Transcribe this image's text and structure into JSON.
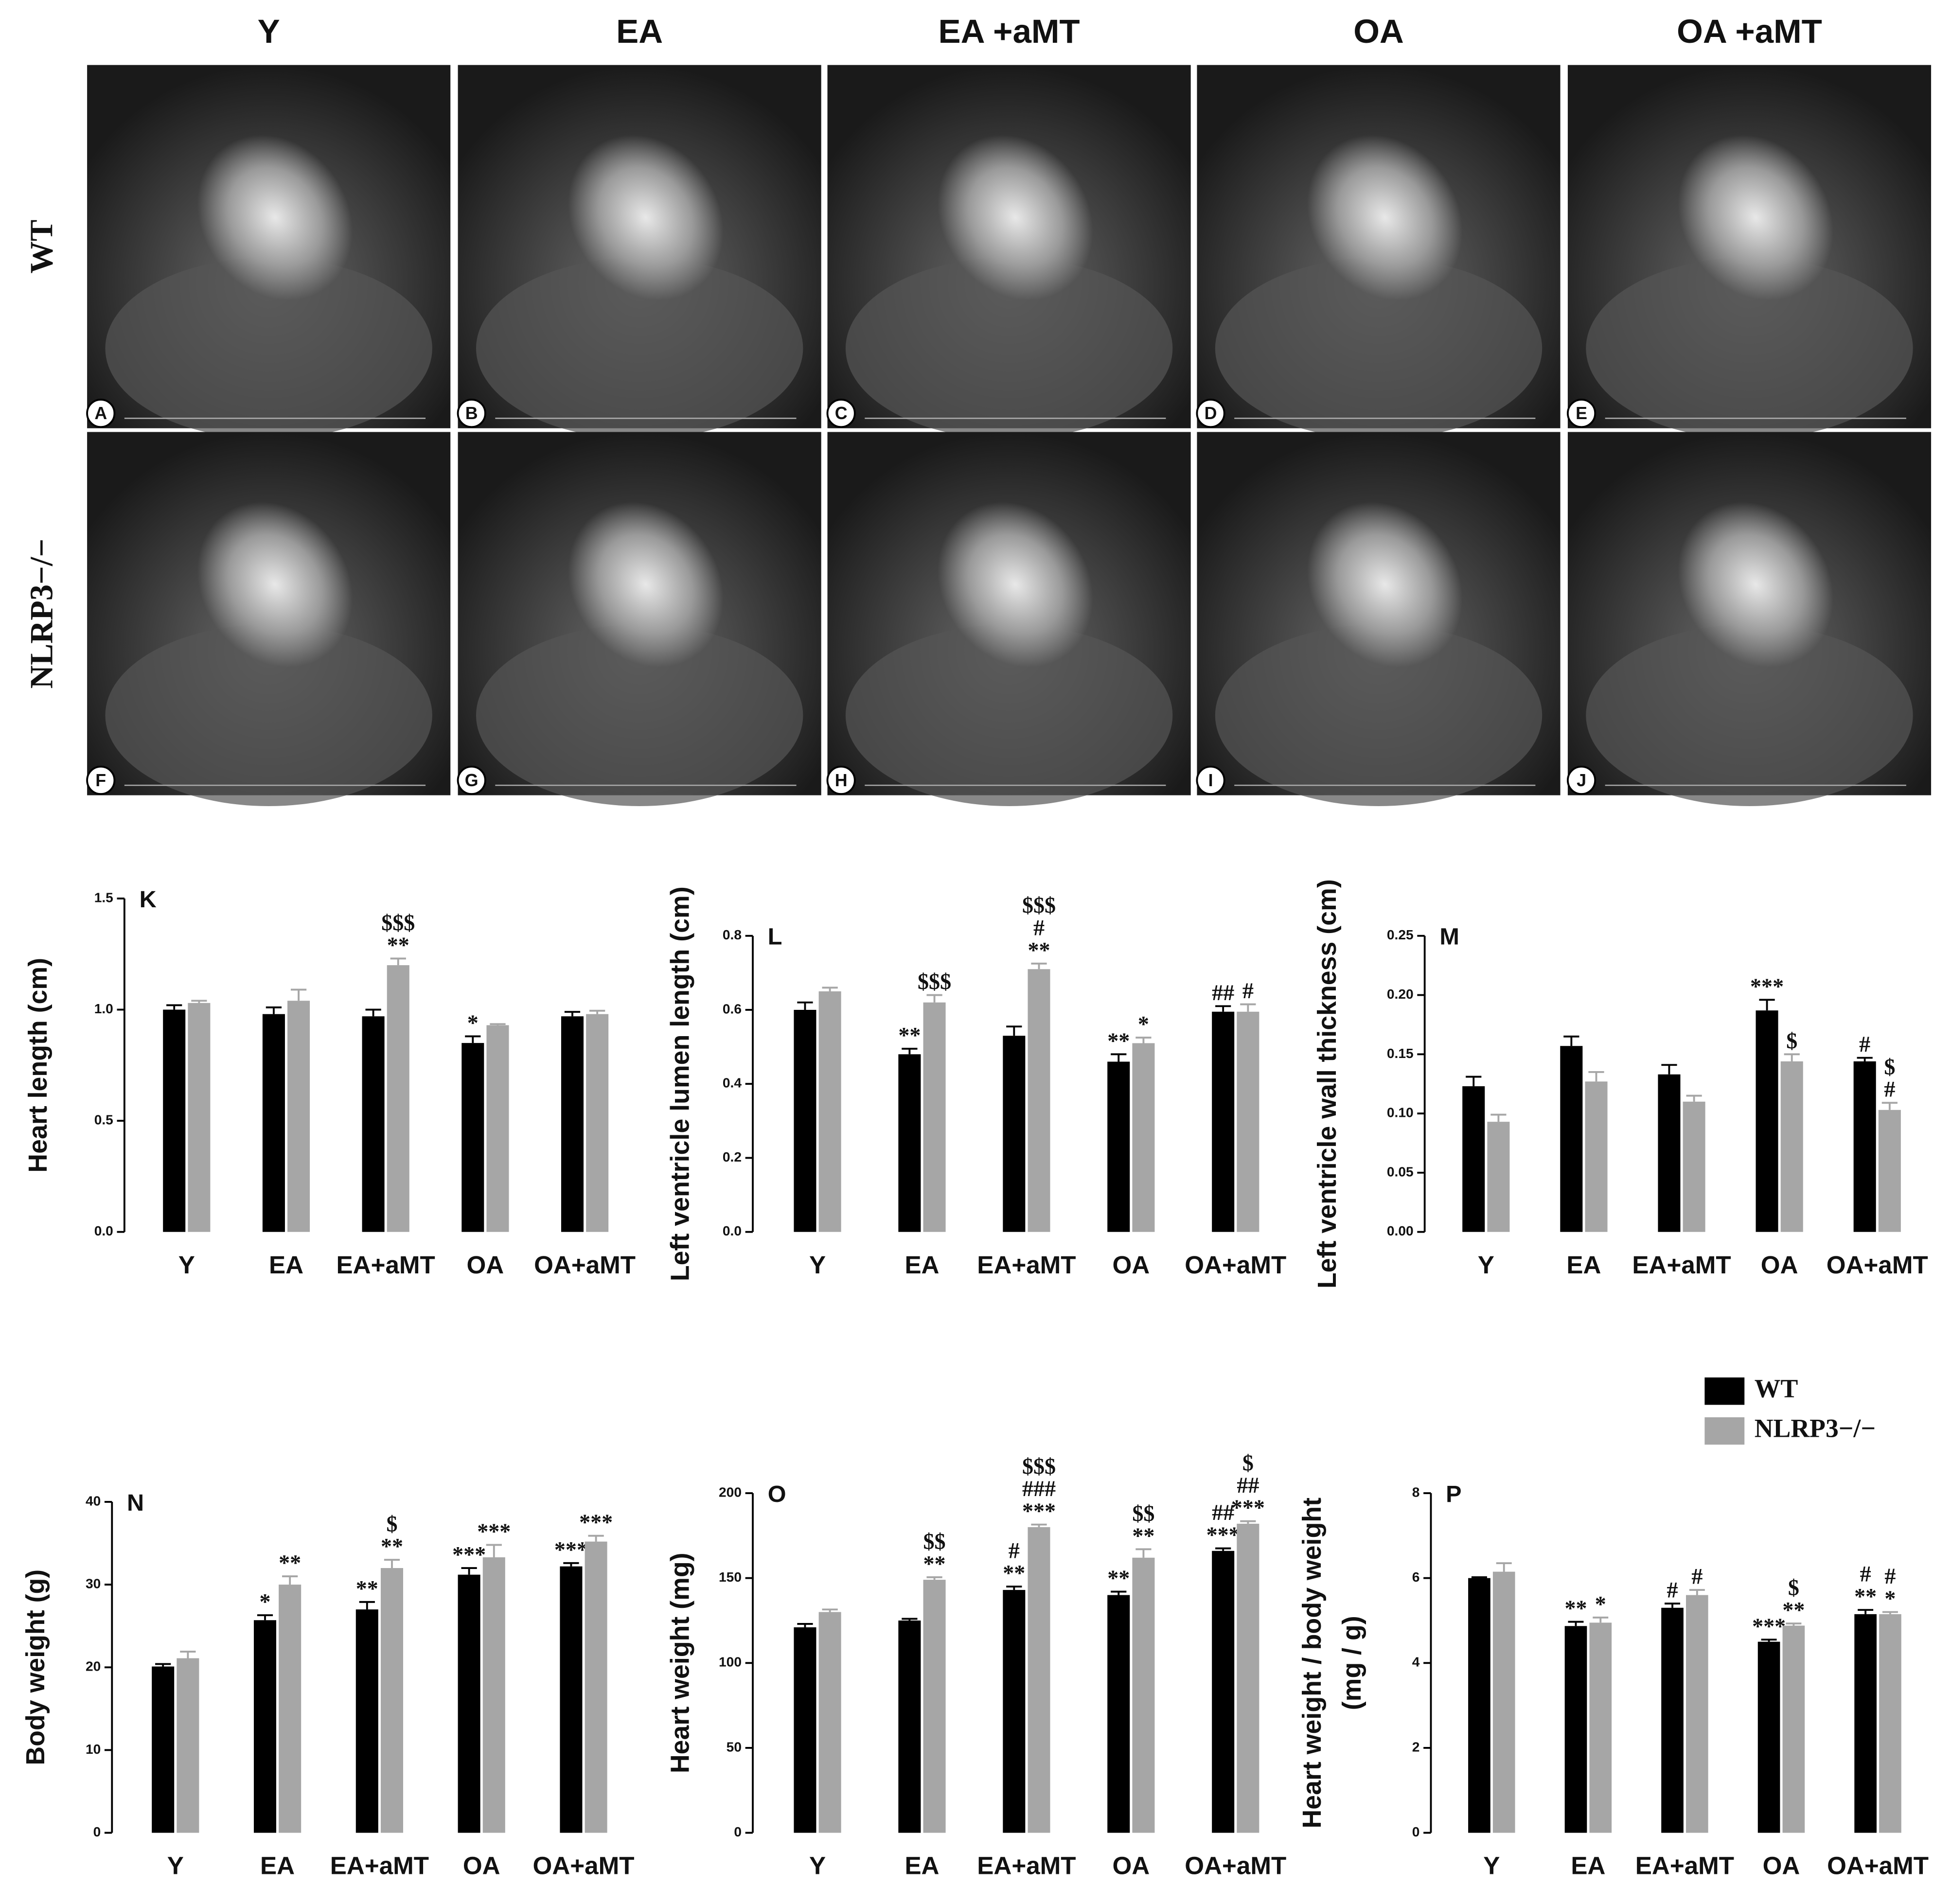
{
  "figure": {
    "columns": [
      "Y",
      "EA",
      "EA +aMT",
      "OA",
      "OA +aMT"
    ],
    "rows": [
      "WT",
      "NLRP3−/−"
    ],
    "panels": [
      "A",
      "B",
      "C",
      "D",
      "E",
      "F",
      "G",
      "H",
      "I",
      "J"
    ]
  },
  "chart_data": [
    {
      "type": "bar",
      "label": "K",
      "y_label": "Heart length (cm)",
      "categories": [
        "Y",
        "EA",
        "EA+aMT",
        "OA",
        "OA+aMT"
      ],
      "ylim": [
        0,
        1.5
      ],
      "yticks": [
        {
          "value": 0,
          "label": "0.0"
        },
        0.5,
        {
          "value": 1,
          "label": "1.0"
        },
        1.5
      ],
      "series": [
        {
          "color": "#000000",
          "values": [
            1.0,
            0.98,
            0.97,
            0.85,
            0.97
          ],
          "errors": [
            0.02,
            0.03,
            0.03,
            0.03,
            0.02
          ],
          "significance": [
            null,
            null,
            null,
            [
              "*"
            ],
            null
          ]
        },
        {
          "color": "#a6a6a6",
          "values": [
            1.03,
            1.04,
            1.2,
            0.93,
            0.98
          ],
          "errors": [
            0.01,
            0.05,
            0.03,
            0.005,
            0.015
          ],
          "significance": [
            null,
            null,
            [
              "$$$",
              "**"
            ],
            null,
            null
          ]
        }
      ]
    },
    {
      "type": "bar",
      "label": "L",
      "y_label": "Left ventricle lumen length (cm)",
      "categories": [
        "Y",
        "EA",
        "EA+aMT",
        "OA",
        "OA+aMT"
      ],
      "ylim": [
        0,
        0.8
      ],
      "yticks": [
        {
          "value": 0,
          "label": "0.0"
        },
        0.2,
        0.4,
        0.6,
        0.8
      ],
      "series": [
        {
          "color": "#000000",
          "values": [
            0.6,
            0.48,
            0.53,
            0.46,
            0.595
          ],
          "errors": [
            0.02,
            0.015,
            0.025,
            0.02,
            0.015
          ],
          "significance": [
            null,
            [
              "**"
            ],
            null,
            [
              "**"
            ],
            [
              "##"
            ]
          ]
        },
        {
          "color": "#a6a6a6",
          "values": [
            0.65,
            0.62,
            0.71,
            0.51,
            0.595
          ],
          "errors": [
            0.01,
            0.02,
            0.015,
            0.015,
            0.02
          ],
          "significance": [
            null,
            [
              "$$$"
            ],
            [
              "$$$",
              "#",
              "**"
            ],
            [
              "*"
            ],
            [
              "#"
            ]
          ]
        }
      ]
    },
    {
      "type": "bar",
      "label": "M",
      "y_label": "Left ventricle wall thickness (cm)",
      "categories": [
        "Y",
        "EA",
        "EA+aMT",
        "OA",
        "OA+aMT"
      ],
      "ylim": [
        0,
        0.25
      ],
      "yticks": [
        {
          "value": 0,
          "label": "0.00"
        },
        {
          "value": 0.05,
          "label": "0.05"
        },
        {
          "value": 0.1,
          "label": "0.10"
        },
        {
          "value": 0.15,
          "label": "0.15"
        },
        {
          "value": 0.2,
          "label": "0.20"
        },
        {
          "value": 0.25,
          "label": "0.25"
        }
      ],
      "series": [
        {
          "color": "#000000",
          "values": [
            0.123,
            0.157,
            0.133,
            0.187,
            0.144
          ],
          "errors": [
            0.008,
            0.008,
            0.008,
            0.009,
            0.003
          ],
          "significance": [
            null,
            null,
            null,
            [
              "***"
            ],
            [
              "#"
            ]
          ]
        },
        {
          "color": "#a6a6a6",
          "values": [
            0.093,
            0.127,
            0.11,
            0.144,
            0.103
          ],
          "errors": [
            0.006,
            0.008,
            0.005,
            0.006,
            0.006
          ],
          "significance": [
            null,
            null,
            null,
            [
              "$"
            ],
            [
              "$",
              "#"
            ]
          ]
        }
      ]
    },
    {
      "type": "bar",
      "label": "N",
      "y_label": "Body weight (g)",
      "categories": [
        "Y",
        "EA",
        "EA+aMT",
        "OA",
        "OA+aMT"
      ],
      "ylim": [
        0,
        40
      ],
      "yticks": [
        0,
        10,
        20,
        30,
        40
      ],
      "series": [
        {
          "color": "#000000",
          "values": [
            20.1,
            25.7,
            27,
            31.2,
            32.2
          ],
          "errors": [
            0.3,
            0.6,
            0.9,
            0.8,
            0.4
          ],
          "significance": [
            null,
            [
              "*"
            ],
            [
              "**"
            ],
            [
              "***"
            ],
            [
              "***"
            ]
          ]
        },
        {
          "color": "#a6a6a6",
          "values": [
            21.1,
            30,
            32,
            33.3,
            35.2
          ],
          "errors": [
            0.8,
            1,
            1,
            1.5,
            0.7
          ],
          "significance": [
            null,
            [
              "**"
            ],
            [
              "$",
              "**"
            ],
            [
              "***"
            ],
            [
              "***"
            ]
          ]
        }
      ]
    },
    {
      "type": "bar",
      "label": "O",
      "y_label": "Heart weight (mg)",
      "categories": [
        "Y",
        "EA",
        "EA+aMT",
        "OA",
        "OA+aMT"
      ],
      "ylim": [
        0,
        200
      ],
      "yticks": [
        0,
        50,
        100,
        150,
        200
      ],
      "series": [
        {
          "color": "#000000",
          "values": [
            121,
            125,
            143,
            140,
            166
          ],
          "errors": [
            2,
            1,
            2,
            2,
            1.5
          ],
          "significance": [
            null,
            null,
            [
              "#",
              "**"
            ],
            [
              "**"
            ],
            [
              "##",
              "***"
            ]
          ]
        },
        {
          "color": "#a6a6a6",
          "values": [
            130,
            149,
            180,
            162,
            182
          ],
          "errors": [
            1.5,
            1.5,
            1.5,
            5,
            1.5
          ],
          "significance": [
            null,
            [
              "$$",
              "**"
            ],
            [
              "$$$",
              "###",
              "***"
            ],
            [
              "$$",
              "**"
            ],
            [
              "$",
              "##",
              "***"
            ]
          ]
        }
      ]
    },
    {
      "type": "bar",
      "label": "P",
      "y_label": [
        "Heart weight / body weight",
        "(mg / g)"
      ],
      "categories": [
        "Y",
        "EA",
        "EA+aMT",
        "OA",
        "OA+aMT"
      ],
      "ylim": [
        0,
        8
      ],
      "yticks": [
        0,
        2,
        4,
        6,
        8
      ],
      "series": [
        {
          "name": "WT",
          "color": "#000000",
          "values": [
            6.0,
            4.87,
            5.3,
            4.5,
            5.15
          ],
          "errors": [
            0.02,
            0.1,
            0.1,
            0.05,
            0.1
          ],
          "significance": [
            null,
            [
              "**"
            ],
            [
              "#"
            ],
            [
              "***"
            ],
            [
              "#",
              "**"
            ]
          ]
        },
        {
          "name": "NLRP3−/−",
          "color": "#a6a6a6",
          "values": [
            6.15,
            4.95,
            5.6,
            4.88,
            5.15
          ],
          "errors": [
            0.2,
            0.12,
            0.12,
            0.05,
            0.05
          ],
          "significance": [
            null,
            [
              "*"
            ],
            [
              "#"
            ],
            [
              "$",
              "**"
            ],
            [
              "#",
              "*"
            ]
          ]
        }
      ]
    }
  ]
}
